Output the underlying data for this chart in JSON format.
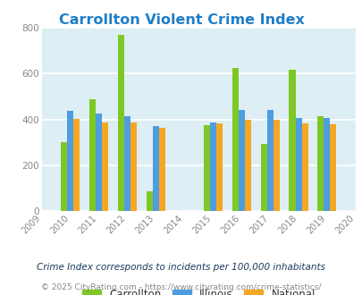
{
  "title": "Carrollton Violent Crime Index",
  "title_color": "#1e7ec8",
  "years": [
    2009,
    2010,
    2011,
    2012,
    2013,
    2014,
    2015,
    2016,
    2017,
    2018,
    2019,
    2020
  ],
  "data_years": [
    2010,
    2011,
    2012,
    2013,
    2015,
    2016,
    2017,
    2018,
    2019
  ],
  "carrollton": [
    300,
    490,
    770,
    85,
    375,
    625,
    295,
    618,
    415
  ],
  "illinois": [
    438,
    425,
    415,
    370,
    388,
    440,
    440,
    405,
    405
  ],
  "national": [
    402,
    388,
    388,
    365,
    382,
    398,
    398,
    383,
    378
  ],
  "carrollton_color": "#7ec825",
  "illinois_color": "#4d9de0",
  "national_color": "#f5a623",
  "ylim": [
    0,
    800
  ],
  "yticks": [
    0,
    200,
    400,
    600,
    800
  ],
  "plot_bg_color": "#ddeef5",
  "legend_labels": [
    "Carrollton",
    "Illinois",
    "National"
  ],
  "footer1": "Crime Index corresponds to incidents per 100,000 inhabitants",
  "footer2": "© 2025 CityRating.com - https://www.cityrating.com/crime-statistics/",
  "bar_width": 0.22,
  "grid_color": "#ffffff",
  "footer1_color": "#1a3a5c",
  "footer2_color": "#888888",
  "tick_color": "#888888",
  "legend_text_color": "#333333"
}
